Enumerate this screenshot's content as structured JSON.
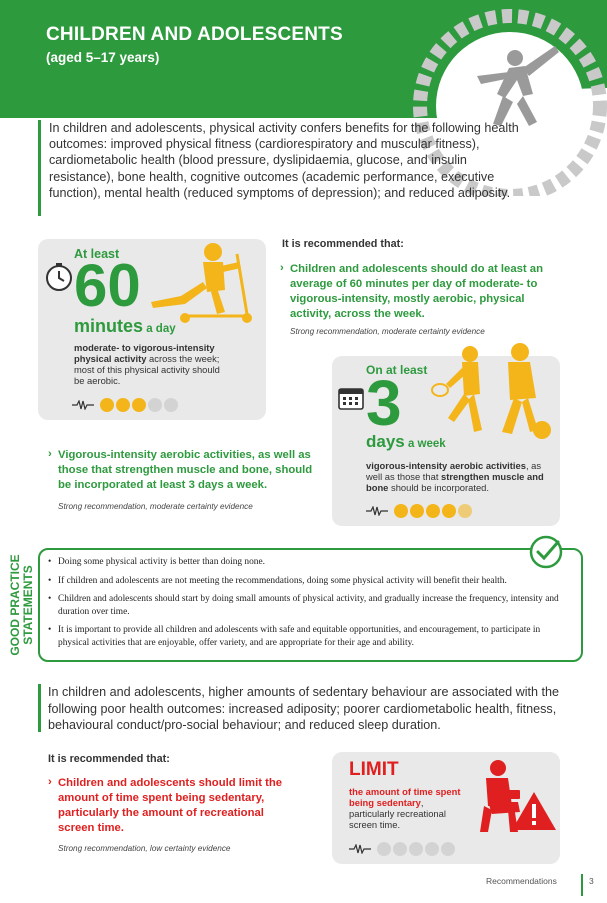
{
  "header": {
    "title": "CHILDREN AND ADOLESCENTS",
    "subtitle": "(aged 5–17 years)"
  },
  "intro": "In children and adolescents, physical activity confers benefits for the following health outcomes: improved physical fitness (cardiorespiratory and muscular fitness), cardiometabolic health (blood pressure, dyslipidaemia, glucose, and insulin resistance), bone health, cognitive outcomes (academic performance, executive function), mental health (reduced symptoms of depression); and reduced adiposity.",
  "card_60": {
    "at_least": "At least",
    "number": "60",
    "unit": "minutes",
    "unit_suffix": " a day",
    "desc_bold": "moderate- to vigorous-intensity physical activity",
    "desc_rest": " across the week; most of this physical activity should be aerobic.",
    "dots": [
      true,
      true,
      true,
      false,
      false
    ]
  },
  "rec1": {
    "heading": "It is recommended that:",
    "chevron": "›",
    "text": "Children and adolescents should do at least an average of 60 minutes per day of moderate- to vigorous-intensity, mostly aerobic, physical activity, across the week.",
    "evidence": "Strong recommendation, moderate certainty evidence"
  },
  "card_3": {
    "on_at_least": "On at least",
    "number": "3",
    "unit": "days",
    "unit_suffix": " a week",
    "desc_bold1": "vigorous-intensity aerobic activities",
    "desc_mid": ", as well as those that ",
    "desc_bold2": "strengthen muscle and bone",
    "desc_end": " should be incorporated.",
    "dots": [
      true,
      true,
      true,
      true,
      true
    ]
  },
  "rec2": {
    "chevron": "›",
    "text": "Vigorous-intensity aerobic activities, as well as those that strengthen muscle and bone, should be incorporated at least 3 days a week.",
    "evidence": "Strong recommendation, moderate certainty evidence"
  },
  "good_practice": {
    "label_line1": "GOOD PRACTICE",
    "label_line2": "STATEMENTS",
    "items": [
      "Doing some physical activity is better than doing none.",
      "If children and adolescents are not meeting the recommendations, doing some physical activity will benefit their health.",
      "Children and adolescents should start by doing small amounts of physical activity, and gradually increase the frequency, intensity and duration over time.",
      "It is important to provide all children and adolescents with safe and equitable opportunities, and encouragement, to participate in physical activities that are enjoyable, offer variety, and are appropriate for their age and ability."
    ]
  },
  "sedentary": {
    "intro": "In children and adolescents, higher amounts of sedentary behaviour are associated with the following poor health outcomes: increased adiposity; poorer cardiometabolic health, fitness, behavioural conduct/pro-social behaviour; and reduced sleep duration.",
    "heading": "It is recommended that:",
    "chevron": "›",
    "text": "Children and adolescents should limit the amount of time spent being sedentary, particularly the amount of recreational screen time.",
    "evidence": "Strong recommendation, low certainty evidence"
  },
  "limit_card": {
    "title": "LIMIT",
    "desc_bold": "the amount of time spent being sedentary",
    "desc_rest": ", particularly recreational screen time.",
    "dots": [
      false,
      false,
      false,
      false,
      false
    ]
  },
  "footer": {
    "section": "Recommendations",
    "page": "3"
  },
  "colors": {
    "green": "#2e9a3e",
    "yellow": "#f3b51a",
    "red": "#e02020",
    "grey_card": "#e9e9e9"
  }
}
